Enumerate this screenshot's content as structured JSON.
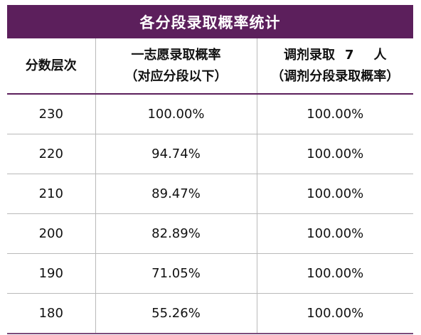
{
  "table": {
    "title": "各分段录取概率统计",
    "headers": {
      "col1": "分数层次",
      "col2_line1": "一志愿录取概率",
      "col2_line2": "（对应分段以下）",
      "col3_line1_prefix": "调剂录取",
      "col3_line1_count": "7",
      "col3_line1_suffix": "人",
      "col3_line2": "（调剂分段录取概率）"
    },
    "rows": [
      {
        "score": "230",
        "first_choice": "100.00%",
        "adjusted": "100.00%"
      },
      {
        "score": "220",
        "first_choice": "94.74%",
        "adjusted": "100.00%"
      },
      {
        "score": "210",
        "first_choice": "89.47%",
        "adjusted": "100.00%"
      },
      {
        "score": "200",
        "first_choice": "82.89%",
        "adjusted": "100.00%"
      },
      {
        "score": "190",
        "first_choice": "71.05%",
        "adjusted": "100.00%"
      },
      {
        "score": "180",
        "first_choice": "55.26%",
        "adjusted": "100.00%"
      }
    ]
  },
  "colors": {
    "title_bg": "#5c1f5c",
    "title_text": "#ffffff",
    "grid": "#b9b9b9"
  }
}
